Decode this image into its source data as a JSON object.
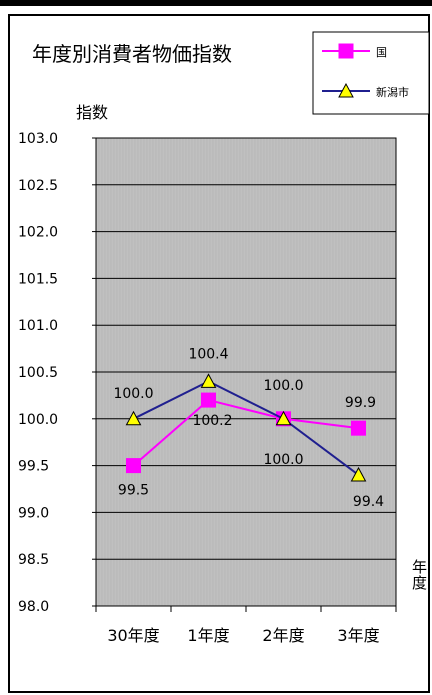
{
  "chart_data": {
    "type": "line",
    "title": "年度別消費者物価指数",
    "ylabel": "指数",
    "xlabel": "年\n度",
    "categories": [
      "30年度",
      "1年度",
      "2年度",
      "3年度"
    ],
    "ylim": [
      98.0,
      103.0
    ],
    "yticks": [
      "98.0",
      "98.5",
      "99.0",
      "99.5",
      "100.0",
      "100.5",
      "101.0",
      "101.5",
      "102.0",
      "102.5",
      "103.0"
    ],
    "grid": true,
    "legend_position": "top-right",
    "series": [
      {
        "name": "国",
        "values": [
          99.5,
          100.2,
          100.0,
          99.9
        ],
        "labels": [
          "99.5",
          "100.2",
          "100.0",
          "99.9"
        ],
        "color": "#ff00ff",
        "marker": "square"
      },
      {
        "name": "新潟市",
        "values": [
          100.0,
          100.4,
          100.0,
          99.4
        ],
        "labels": [
          "100.0",
          "100.4",
          "100.0",
          "99.4"
        ],
        "color": "#1f1f8f",
        "marker": "triangle",
        "marker_fill": "#ffff00"
      }
    ]
  },
  "colors": {
    "plot_bg": "#c0c0c0",
    "grid": "#000000",
    "frame": "#000000"
  }
}
